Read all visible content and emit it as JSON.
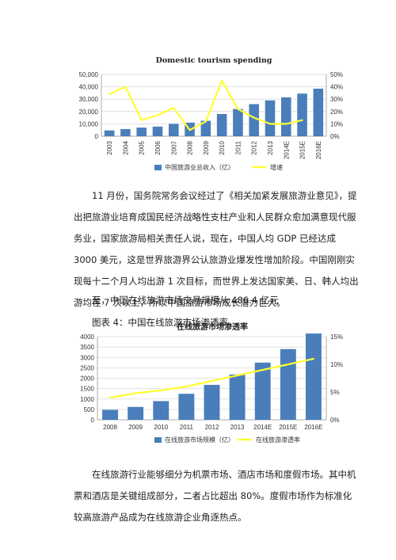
{
  "chart_data": [
    {
      "type": "bar",
      "title": "Domestic tourism spending",
      "categories": [
        "2003",
        "2004",
        "2005",
        "2006",
        "2007",
        "2008",
        "2009",
        "2010",
        "2011",
        "2012",
        "2013",
        "2014E",
        "2015E",
        "2016E"
      ],
      "y_ticks": [
        "0",
        "10,000",
        "20,000",
        "30,000",
        "40,000",
        "50,000"
      ],
      "y2_ticks": [
        "0%",
        "10%",
        "20%",
        "30%",
        "40%",
        "50%"
      ],
      "ylim": [
        0,
        50000
      ],
      "y2lim": [
        0,
        50
      ],
      "series": [
        {
          "name": "中国旅游业总收入（亿）",
          "kind": "bar",
          "color": "#4a7ebb",
          "values": [
            4700,
            5800,
            7000,
            7800,
            10000,
            11000,
            12500,
            18000,
            22000,
            26000,
            29000,
            31500,
            34500,
            38500
          ]
        },
        {
          "name": "增速",
          "kind": "line",
          "axis": "right",
          "color": "#ffff33",
          "values": [
            34,
            40,
            13,
            17,
            23,
            5,
            12,
            45,
            22,
            15,
            10,
            10,
            13,
            null
          ]
        }
      ]
    },
    {
      "type": "bar",
      "title": "在线旅游市场渗透率",
      "categories": [
        "2008",
        "2009",
        "2010",
        "2011",
        "2012",
        "2013",
        "2014E",
        "2015E",
        "2016E"
      ],
      "y_ticks": [
        "0",
        "500",
        "1000",
        "1500",
        "2000",
        "2500",
        "3000",
        "3500",
        "4000"
      ],
      "y2_ticks": [
        "0%",
        "5%",
        "10%",
        "15%"
      ],
      "ylim": [
        0,
        4000
      ],
      "y2lim": [
        0,
        15
      ],
      "series": [
        {
          "name": "在线旅游市场规模（亿）",
          "kind": "bar",
          "color": "#4a7ebb",
          "values": [
            480,
            620,
            900,
            1250,
            1680,
            2180,
            2750,
            3400,
            4150
          ]
        },
        {
          "name": "在线旅游渗透率",
          "kind": "line",
          "axis": "right",
          "color": "#ffff33",
          "values": [
            4.0,
            4.8,
            5.3,
            6.0,
            7.0,
            8.0,
            9.0,
            10.0,
            11.0
          ]
        }
      ]
    }
  ],
  "text": {
    "para1": "11 月份，国务院常务会议经过了《相关加紧发展旅游业意见》，提出把旅游业培育成国民经济战略性支柱产业和人民群众愈加满意现代服务业，国家旅游局相关责任人说，现在，中国人均 GDP 已经达成 3000 美元，这是世界旅游界公认旅游业爆发性增加阶段。中国刚刚实现每十二个月人均出游 1 次目标，而世界上发达国家美、日、韩人均出游均在 7 次以上，所以中国旅游市场成长潜力巨大。",
    "para2": "至，中国在线旅游市场交易规模从 486.4 亿元",
    "caption": "图表 4：中国在线旅游市场渗透率",
    "para3": "在线旅游行业能够细分为机票市场、酒店市场和度假市场。其中机票和酒店是关键组成部分，二者占比超出 80%。度假市场作为标准化较高旅游产品成为在线旅游企业角逐热点。"
  }
}
